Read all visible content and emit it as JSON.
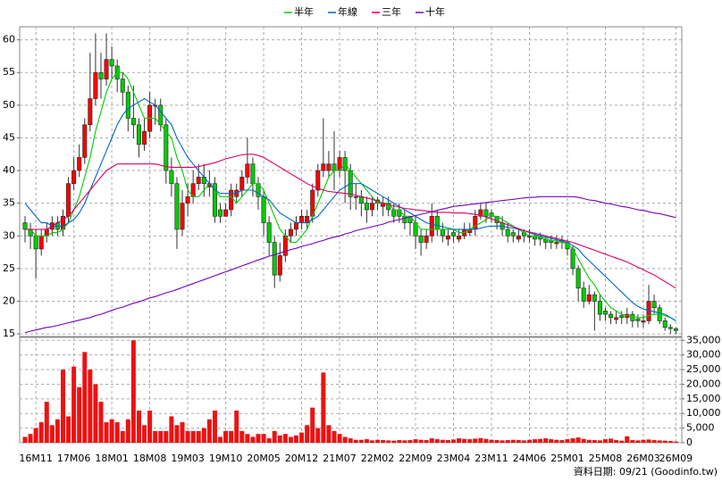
{
  "chart_data": [
    {
      "type": "candlestick",
      "categories": [
        null,
        null,
        "16M11",
        null,
        null,
        null,
        null,
        null,
        null,
        "17M06",
        null,
        null,
        null,
        null,
        null,
        null,
        "18M01",
        null,
        null,
        null,
        null,
        null,
        null,
        "18M08",
        null,
        null,
        null,
        null,
        null,
        null,
        "19M03",
        null,
        null,
        null,
        null,
        null,
        null,
        "19M10",
        null,
        null,
        null,
        null,
        null,
        null,
        "20M05",
        null,
        null,
        null,
        null,
        null,
        null,
        "20M12",
        null,
        null,
        null,
        null,
        null,
        null,
        "21M07",
        null,
        null,
        null,
        null,
        null,
        null,
        "22M02",
        null,
        null,
        null,
        null,
        null,
        null,
        "22M09",
        null,
        null,
        null,
        null,
        null,
        null,
        "23M04",
        null,
        null,
        null,
        null,
        null,
        null,
        "23M11",
        null,
        null,
        null,
        null,
        null,
        null,
        "24M06",
        null,
        null,
        null,
        null,
        null,
        null,
        "25M01",
        null,
        null,
        null,
        null,
        null,
        null,
        "25M08",
        null,
        null,
        null,
        null,
        null,
        null,
        "26M03",
        null,
        null,
        null,
        null,
        null,
        "26M09"
      ],
      "open": [
        32,
        31,
        30,
        28,
        30,
        31,
        32,
        31,
        33,
        38,
        40,
        42,
        47,
        51,
        55,
        54,
        57,
        56,
        54,
        52,
        48,
        47,
        44,
        46,
        50,
        50,
        47,
        40,
        38,
        31,
        35,
        36,
        38,
        39,
        37.5,
        38,
        34,
        33,
        34,
        36,
        37,
        39,
        41,
        38,
        36,
        32,
        29,
        24,
        27,
        30,
        31,
        32,
        32,
        33,
        37,
        40,
        40,
        41,
        40,
        42,
        40,
        36,
        36,
        35,
        34,
        35.5,
        34.5,
        35,
        34,
        34,
        33,
        33,
        32,
        30,
        29,
        30,
        33,
        31,
        29.5,
        30.5,
        29.5,
        30,
        30.5,
        31,
        33,
        34,
        33.5,
        33,
        32,
        31,
        30.5,
        29.5,
        30.5,
        29.8,
        30,
        29.8,
        29.5,
        29.3,
        28.8,
        29.3,
        29,
        28,
        25,
        22,
        20,
        21,
        20,
        18.5,
        18,
        17.2,
        17.8,
        17.5,
        18,
        17.3,
        16.8,
        17,
        20,
        19,
        17,
        16,
        15.8
      ],
      "high": [
        33,
        32,
        31,
        31,
        32,
        33,
        33,
        34,
        39,
        42,
        44,
        48,
        58,
        61,
        58,
        61,
        59,
        57,
        55,
        53,
        53,
        48,
        48,
        52,
        51,
        51,
        48,
        42,
        39,
        37,
        38,
        40,
        41,
        41,
        40,
        39,
        35,
        35,
        38,
        38,
        40,
        45,
        42,
        39,
        37,
        33,
        30,
        29,
        31,
        32,
        33,
        34,
        34,
        38,
        41,
        48,
        43,
        46,
        43,
        43,
        41,
        38,
        37,
        36,
        36,
        36,
        36,
        36,
        35,
        35,
        34,
        33,
        33,
        31,
        31,
        35,
        34,
        32,
        31,
        31,
        31,
        32,
        32,
        34,
        35,
        35,
        34,
        33,
        33,
        32,
        31,
        31,
        31,
        31,
        30.5,
        30.5,
        30,
        30,
        30,
        30,
        29.5,
        28.5,
        25.5,
        23,
        22.5,
        21.5,
        21,
        19,
        18.5,
        18.5,
        18.5,
        19,
        18.5,
        18,
        18,
        22.5,
        21,
        19.5,
        17.5,
        16.5,
        16
      ],
      "low": [
        29,
        28,
        23.5,
        27,
        29,
        30,
        30,
        30,
        32,
        37,
        39,
        41,
        46,
        50,
        51,
        53,
        54,
        52,
        50,
        46,
        45,
        42,
        43,
        45,
        47,
        46,
        38,
        36,
        28,
        30,
        33,
        35,
        37,
        36,
        36,
        32,
        32,
        33,
        33,
        35,
        36,
        38,
        36,
        34,
        30,
        27,
        22,
        23,
        26,
        29,
        30,
        31,
        31,
        32,
        36,
        39,
        39,
        37,
        39,
        35,
        34,
        34,
        33,
        32,
        33,
        34,
        33,
        33,
        32,
        32,
        31,
        30,
        28,
        27,
        28,
        29,
        30,
        29,
        28.5,
        29,
        29,
        29.5,
        30,
        30,
        32.5,
        32,
        32,
        31,
        30,
        29,
        29,
        29,
        29,
        29,
        28.5,
        28.5,
        28,
        28,
        28,
        28,
        27,
        24,
        20,
        19,
        19.5,
        15.5,
        17,
        17,
        16.5,
        16.5,
        16.5,
        16.5,
        16,
        16,
        16,
        16.5,
        18,
        16.5,
        15.5,
        15,
        15
      ],
      "close": [
        31,
        30,
        28,
        30,
        31,
        32,
        31,
        33,
        38,
        40,
        42,
        47,
        51,
        55,
        54,
        57,
        56,
        54,
        52,
        48,
        47,
        44,
        46,
        50,
        50,
        47,
        40,
        38,
        31,
        35,
        36,
        38,
        39,
        38,
        38,
        33,
        33,
        34,
        37,
        37,
        39,
        41,
        38,
        36,
        32,
        29,
        24,
        27,
        30,
        31,
        32,
        33,
        33,
        37,
        40,
        41,
        41,
        40,
        42,
        40,
        36,
        36,
        35,
        34,
        35,
        35,
        35,
        34,
        33,
        33,
        32,
        32,
        30,
        29,
        30,
        33,
        31,
        30,
        30,
        30,
        30,
        31,
        31,
        33,
        34,
        33,
        33,
        32,
        31,
        30,
        30,
        30,
        30,
        30,
        29.5,
        29.5,
        29,
        29,
        29,
        29,
        28,
        25,
        22,
        20,
        21,
        20,
        18,
        18,
        17.5,
        17.5,
        17.5,
        18,
        17,
        17,
        17,
        20,
        19,
        17,
        16,
        15.8,
        15.5
      ],
      "up_color": "#ff0000",
      "down_color": "#00cc00",
      "series": [
        {
          "name": "半年",
          "color": "#00cc00",
          "values": [
            31,
            31,
            30,
            30,
            30,
            30.5,
            30.5,
            31,
            32,
            34,
            36,
            39,
            42,
            46,
            49,
            52,
            54,
            55,
            55,
            54,
            52,
            50,
            48,
            48,
            48,
            47,
            46,
            45,
            42,
            40,
            37,
            36,
            36,
            37,
            38,
            37,
            36,
            36,
            36,
            35,
            36,
            37,
            38,
            38,
            37,
            35,
            33,
            31,
            30,
            29,
            29,
            30,
            31,
            33,
            35,
            37,
            39,
            40,
            40,
            41,
            40,
            39,
            38,
            37,
            36,
            35,
            35,
            35,
            34,
            34,
            33,
            33,
            32,
            31,
            31,
            31,
            31,
            31,
            31,
            31,
            30.5,
            30.5,
            31,
            31.5,
            32,
            32.5,
            33,
            33,
            32.5,
            32,
            31.5,
            31,
            30.5,
            30,
            30,
            29.8,
            29.5,
            29.3,
            29.2,
            29,
            28.8,
            28,
            26.5,
            25,
            23.5,
            22.5,
            21,
            20,
            19,
            18.5,
            18,
            17.8,
            17.6,
            17.5,
            17.5,
            17.8,
            18,
            18,
            17.8,
            17.5,
            17
          ]
        },
        {
          "name": "年線",
          "color": "#0066cc",
          "values": [
            35,
            34,
            33,
            32,
            32,
            31.5,
            31.5,
            31.5,
            32,
            32.5,
            33.5,
            35,
            37,
            39,
            41,
            43,
            45,
            47,
            48.5,
            49.5,
            50,
            50.5,
            51,
            50.5,
            50,
            49,
            48,
            47,
            45,
            43.5,
            42,
            41,
            40,
            39,
            38,
            37,
            36.5,
            36.5,
            36.5,
            36.5,
            37,
            37,
            37,
            36.5,
            36,
            35.5,
            34.5,
            33.5,
            33,
            32.5,
            32,
            32,
            32,
            32.5,
            33,
            34,
            35,
            36,
            37,
            37.5,
            38,
            38,
            38,
            37.5,
            37,
            36.5,
            36,
            35.5,
            35,
            34.5,
            34,
            33.5,
            33,
            32.5,
            32,
            31.8,
            31.6,
            31.4,
            31.2,
            31,
            31,
            31,
            31,
            31,
            31.2,
            31.4,
            31.5,
            31.5,
            31.5,
            31.3,
            31.2,
            31,
            30.8,
            30.5,
            30.2,
            30,
            29.8,
            29.6,
            29.4,
            29.2,
            29,
            28.5,
            28,
            27,
            26.2,
            25.4,
            24.6,
            23.8,
            23,
            22.2,
            21.4,
            20.6,
            19.8,
            19.2,
            18.8,
            18.6,
            18.4,
            18.2,
            18,
            17.5,
            17
          ]
        },
        {
          "name": "三年",
          "color": "#dd0066",
          "values": [
            31,
            31,
            31,
            31,
            31,
            31.5,
            32,
            32.5,
            33,
            34,
            35,
            36,
            37,
            38,
            39,
            40,
            40.5,
            41,
            41,
            41,
            41,
            41,
            41,
            41,
            41,
            40.8,
            40.6,
            40.5,
            40.5,
            40.5,
            40.5,
            40.5,
            40.6,
            40.8,
            41,
            41.2,
            41.5,
            41.8,
            42,
            42.2,
            42.4,
            42.5,
            42.5,
            42.3,
            42,
            41.5,
            41,
            40.5,
            40,
            39.5,
            39,
            38.5,
            38,
            37.6,
            37.3,
            37,
            36.8,
            36.7,
            36.6,
            36.5,
            36.4,
            36.2,
            36,
            35.8,
            35.6,
            35.3,
            35,
            34.8,
            34.6,
            34.4,
            34.2,
            34.1,
            34,
            33.9,
            33.8,
            33.7,
            33.6,
            33.6,
            33.6,
            33.5,
            33.5,
            33.5,
            33.4,
            33.3,
            33.1,
            32.9,
            32.6,
            32.3,
            32,
            31.7,
            31.4,
            31.1,
            30.8,
            30.6,
            30.4,
            30.2,
            30,
            29.8,
            29.6,
            29.4,
            29.2,
            29,
            28.7,
            28.4,
            28.1,
            27.8,
            27.5,
            27.2,
            26.9,
            26.6,
            26.3,
            26,
            25.6,
            25.2,
            24.8,
            24.4,
            24,
            23.5,
            23,
            22.5,
            22
          ]
        },
        {
          "name": "十年",
          "color": "#7700bb",
          "values": [
            15.2,
            15.4,
            15.6,
            15.8,
            16,
            16.1,
            16.3,
            16.5,
            16.7,
            16.9,
            17.1,
            17.3,
            17.5,
            17.8,
            18,
            18.3,
            18.6,
            18.9,
            19.1,
            19.4,
            19.7,
            19.9,
            20.2,
            20.5,
            20.7,
            21,
            21.3,
            21.5,
            21.8,
            22.1,
            22.4,
            22.7,
            23,
            23.3,
            23.6,
            23.9,
            24.2,
            24.5,
            24.8,
            25.1,
            25.4,
            25.7,
            26,
            26.3,
            26.6,
            26.9,
            27.1,
            27.4,
            27.6,
            27.9,
            28.1,
            28.4,
            28.6,
            28.8,
            29.1,
            29.3,
            29.6,
            29.8,
            30,
            30.3,
            30.5,
            30.8,
            31,
            31.2,
            31.4,
            31.6,
            31.8,
            32.1,
            32.3,
            32.5,
            32.7,
            32.9,
            33.1,
            33.3,
            33.5,
            33.7,
            33.9,
            34.1,
            34.3,
            34.5,
            34.6,
            34.7,
            34.8,
            34.9,
            35,
            35.1,
            35.2,
            35.3,
            35.4,
            35.5,
            35.6,
            35.7,
            35.8,
            35.9,
            35.9,
            36,
            36,
            36,
            36,
            36,
            36,
            36,
            35.9,
            35.7,
            35.5,
            35.4,
            35.2,
            35,
            34.9,
            34.7,
            34.5,
            34.4,
            34.2,
            34,
            33.9,
            33.7,
            33.5,
            33.4,
            33.2,
            33,
            32.8
          ]
        }
      ],
      "ylim": [
        14.6,
        62
      ],
      "yticks": [
        15,
        20,
        25,
        30,
        35,
        40,
        45,
        50,
        55,
        60
      ],
      "grid": true,
      "legend": "top",
      "footnote": "資料日期: 09/21 (Goodinfo.tw)"
    },
    {
      "type": "bar",
      "values": [
        2000,
        3000,
        5000,
        7000,
        14000,
        6000,
        8000,
        25000,
        9000,
        26000,
        19000,
        31000,
        25000,
        20000,
        14000,
        7000,
        8000,
        7000,
        4000,
        8000,
        35000,
        11000,
        6000,
        11000,
        4000,
        4000,
        4000,
        9000,
        6000,
        7000,
        4000,
        4000,
        4000,
        5000,
        8000,
        11000,
        2000,
        4000,
        4000,
        11000,
        4000,
        3000,
        2000,
        3000,
        3000,
        1500,
        4000,
        2500,
        3000,
        2000,
        2500,
        3500,
        6000,
        12000,
        5000,
        24000,
        6000,
        4000,
        3000,
        2000,
        1500,
        1000,
        1000,
        1200,
        800,
        1000,
        900,
        800,
        700,
        900,
        800,
        900,
        1200,
        1000,
        900,
        1500,
        1200,
        1000,
        900,
        1100,
        1500,
        1300,
        1200,
        1400,
        1600,
        1300,
        1000,
        900,
        800,
        900,
        1000,
        900,
        800,
        1000,
        1200,
        1300,
        1500,
        1200,
        1000,
        900,
        1200,
        1500,
        1800,
        1300,
        1000,
        900,
        800,
        1200,
        1400,
        900,
        700,
        2200,
        900,
        800,
        1000,
        1100,
        900,
        800,
        700,
        600,
        400
      ],
      "color": "#ee1111",
      "ylim": [
        0,
        36000
      ],
      "yticks": [
        0,
        {
          "value": 5000,
          "label": "5,000"
        },
        {
          "value": 10000,
          "label": "10,000"
        },
        {
          "value": 15000,
          "label": "15,000"
        },
        {
          "value": 20000,
          "label": "20,000"
        },
        {
          "value": 25000,
          "label": "25,000"
        },
        {
          "value": 30000,
          "label": "30,000"
        },
        {
          "value": 35000,
          "label": "35,000"
        }
      ],
      "grid": true
    }
  ]
}
